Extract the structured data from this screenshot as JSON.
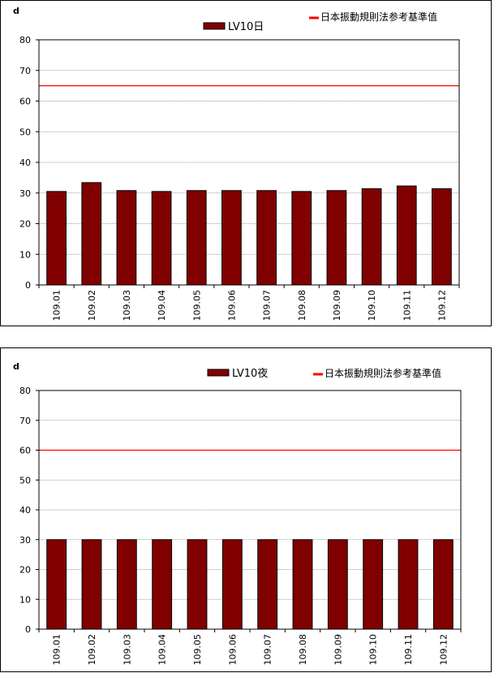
{
  "colors": {
    "bar_fill": "#800000",
    "bar_stroke": "#000000",
    "reference_line": "#ff0000",
    "gridline": "#808080"
  },
  "chart_data": [
    {
      "type": "bar",
      "unit": "d",
      "categories": [
        "109.01",
        "109.02",
        "109.03",
        "109.04",
        "109.05",
        "109.06",
        "109.07",
        "109.08",
        "109.09",
        "109.10",
        "109.11",
        "109.12"
      ],
      "series": [
        {
          "name": "LV10日",
          "values": [
            30.5,
            33.4,
            30.8,
            30.5,
            30.8,
            30.8,
            30.8,
            30.5,
            30.8,
            31.4,
            32.3,
            31.4
          ]
        }
      ],
      "reference_line": {
        "name": "日本振動規則法参考基準值",
        "value": 65
      },
      "ylim": [
        0,
        80
      ],
      "yticks": [
        0,
        10,
        20,
        30,
        40,
        50,
        60,
        70,
        80
      ],
      "grid": true,
      "legend_position": "top"
    },
    {
      "type": "bar",
      "unit": "d",
      "categories": [
        "109.01",
        "109.02",
        "109.03",
        "109.04",
        "109.05",
        "109.06",
        "109.07",
        "109.08",
        "109.09",
        "109.10",
        "109.11",
        "109.12"
      ],
      "series": [
        {
          "name": "LV10夜",
          "values": [
            30,
            30,
            30,
            30,
            30,
            30,
            30,
            30,
            30,
            30,
            30,
            30
          ]
        }
      ],
      "reference_line": {
        "name": "日本振動規則法参考基準值",
        "value": 60
      },
      "ylim": [
        0,
        80
      ],
      "yticks": [
        0,
        10,
        20,
        30,
        40,
        50,
        60,
        70,
        80
      ],
      "grid": true,
      "legend_position": "top"
    }
  ]
}
